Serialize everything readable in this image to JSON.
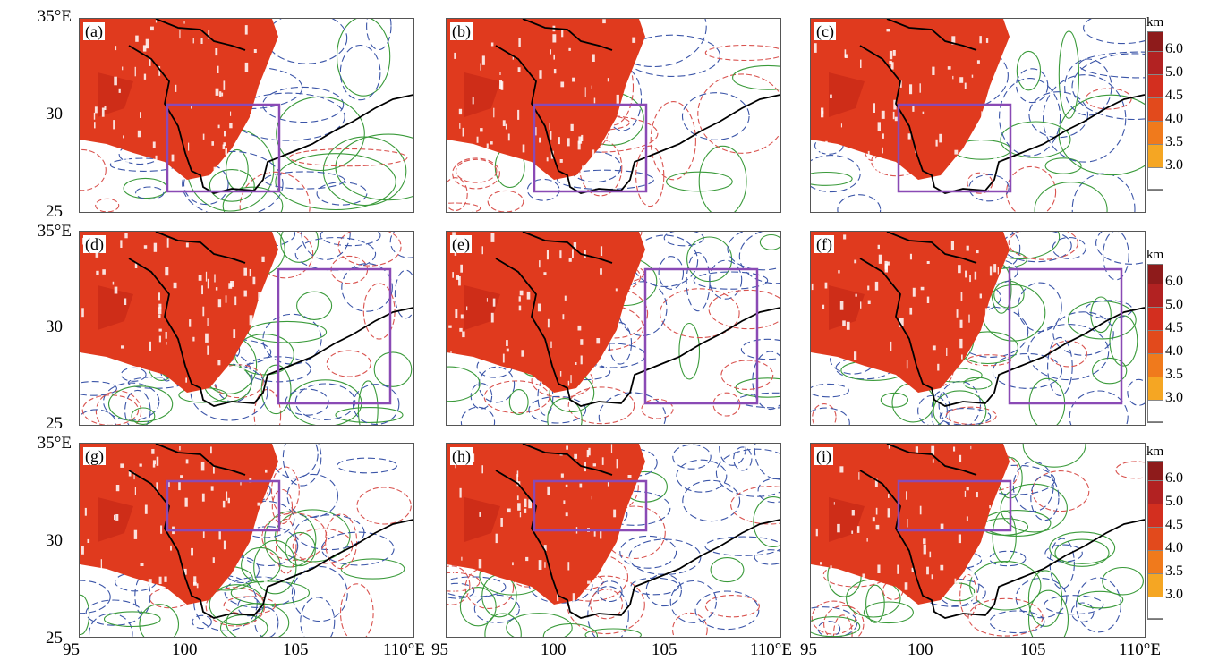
{
  "map": {
    "y_labels": [
      "35°E",
      "30",
      "25"
    ],
    "x_labels": [
      "95",
      "100",
      "105",
      "110°E"
    ],
    "panels": [
      {
        "label": "(a)",
        "box": "south"
      },
      {
        "label": "(b)",
        "box": "south"
      },
      {
        "label": "(c)",
        "box": "south"
      },
      {
        "label": "(d)",
        "box": "east"
      },
      {
        "label": "(e)",
        "box": "east"
      },
      {
        "label": "(f)",
        "box": "east"
      },
      {
        "label": "(g)",
        "box": "north"
      },
      {
        "label": "(h)",
        "box": "north"
      },
      {
        "label": "(i)",
        "box": "north"
      }
    ],
    "colorbar": {
      "unit": "km",
      "ticks": [
        "6.0",
        "5.0",
        "4.5",
        "4.0",
        "3.5",
        "3.0"
      ],
      "colors": [
        "#8e1b1b",
        "#b22222",
        "#d32f1f",
        "#e24a1c",
        "#f07a1c",
        "#f5a623",
        "#ffffff"
      ]
    },
    "contour_colors": {
      "negative": "#3b55a8",
      "zero": "#3a9a3a",
      "positive": "#d9534f"
    },
    "terrain_color": "#e03a1e",
    "box_color": "#8a4ab5"
  }
}
